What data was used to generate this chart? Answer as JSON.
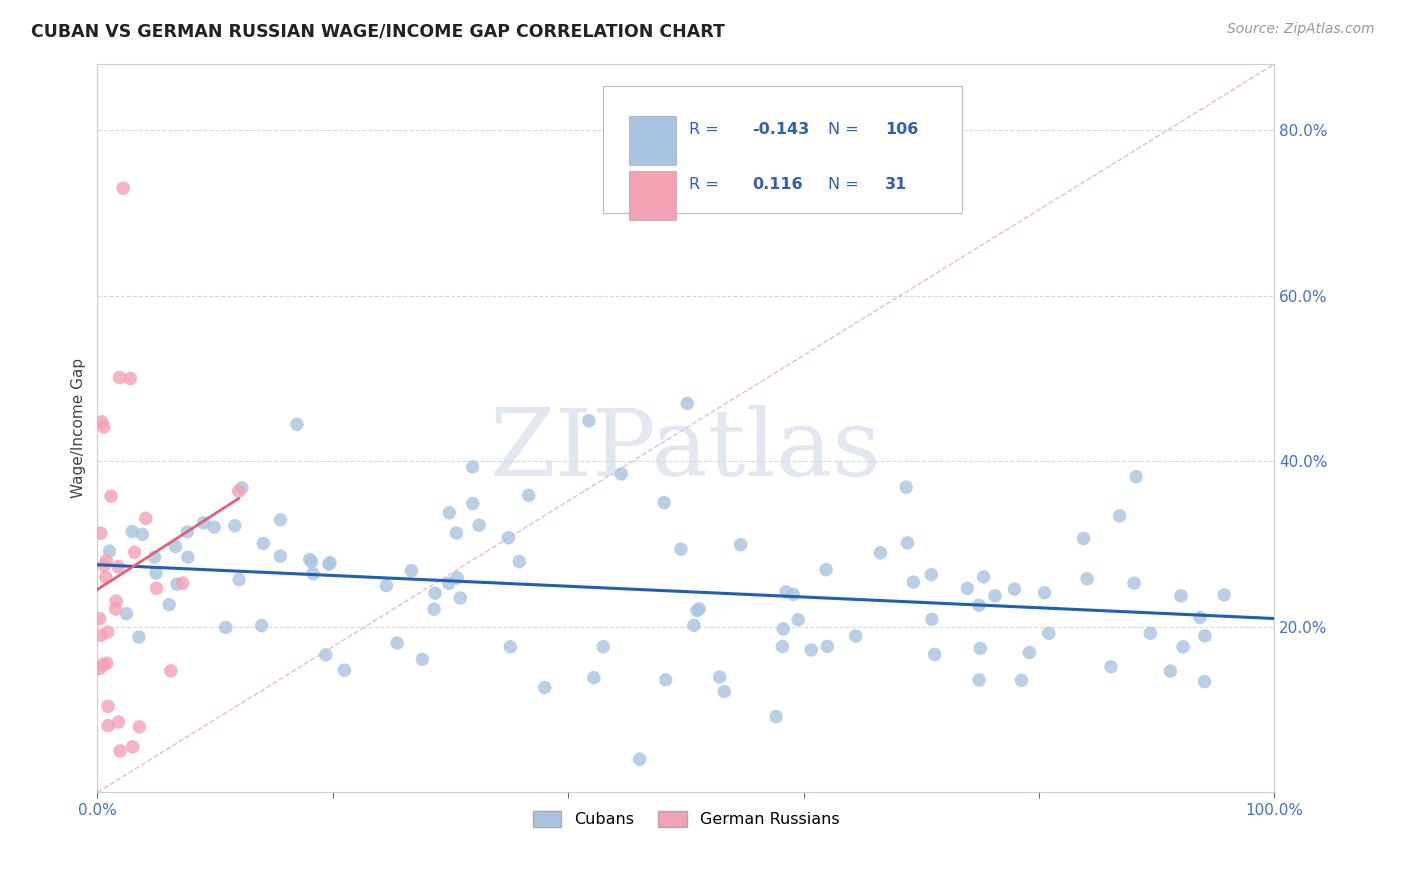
{
  "title": "CUBAN VS GERMAN RUSSIAN WAGE/INCOME GAP CORRELATION CHART",
  "source": "Source: ZipAtlas.com",
  "ylabel": "Wage/Income Gap",
  "xlim": [
    0.0,
    1.0
  ],
  "ylim": [
    0.0,
    0.88
  ],
  "ytick_labels_right": [
    "20.0%",
    "40.0%",
    "60.0%",
    "80.0%"
  ],
  "ytick_vals_right": [
    0.2,
    0.4,
    0.6,
    0.8
  ],
  "cubans_color": "#a8c4e0",
  "german_russian_color": "#f4a0b5",
  "trend_cubans_color": "#2060b0",
  "trend_german_color": "#e06080",
  "diag_line_color": "#e8b0b8",
  "legend_r_cubans": "-0.143",
  "legend_n_cubans": "106",
  "legend_r_german": "0.116",
  "legend_n_german": "31",
  "cubans_r": -0.143,
  "cubans_n": 106,
  "german_r": 0.116,
  "german_n": 31,
  "background_color": "#ffffff",
  "grid_color": "#d8d8d8",
  "watermark": "ZIPatlas",
  "watermark_color": "#ccd8e8",
  "legend_text_color": "#3060b0",
  "axis_tick_color": "#4472c4"
}
